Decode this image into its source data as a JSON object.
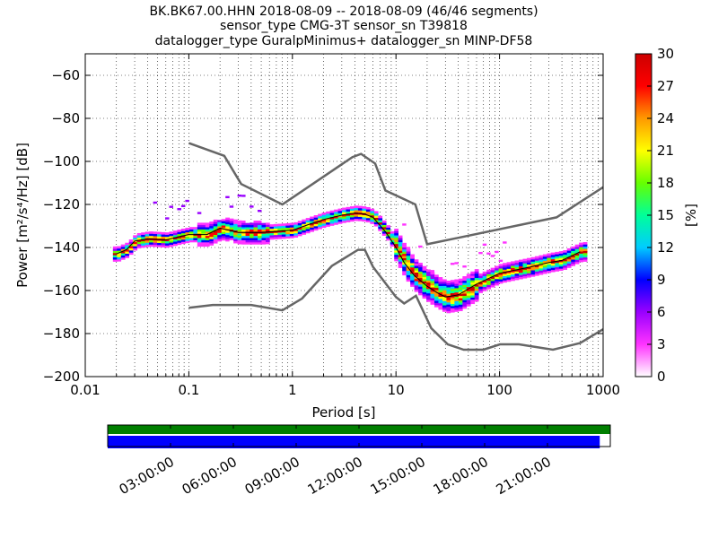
{
  "chart_data": {
    "type": "heatmap",
    "title_lines": [
      "BK.BK67.00.HHN   2018-08-09 -- 2018-08-09  (46/46 segments)",
      "sensor_type CMG-3T sensor_sn T39818",
      "datalogger_type GuralpMinimus+ datalogger_sn MINP-DF58"
    ],
    "xlabel": "Period [s]",
    "ylabel": "Power [m²/s⁴/Hz] [dB]",
    "xscale": "log",
    "xlim": [
      0.01,
      1000
    ],
    "ylim": [
      -200,
      -50
    ],
    "x_ticks": [
      {
        "value": 0.01,
        "label": "0.01"
      },
      {
        "value": 0.1,
        "label": "0.1"
      },
      {
        "value": 1,
        "label": "1"
      },
      {
        "value": 10,
        "label": "10"
      },
      {
        "value": 100,
        "label": "100"
      },
      {
        "value": 1000,
        "label": "1000"
      }
    ],
    "y_ticks": [
      {
        "value": -60,
        "label": "−60"
      },
      {
        "value": -80,
        "label": "−80"
      },
      {
        "value": -100,
        "label": "−100"
      },
      {
        "value": -120,
        "label": "−120"
      },
      {
        "value": -140,
        "label": "−140"
      },
      {
        "value": -160,
        "label": "−160"
      },
      {
        "value": -180,
        "label": "−180"
      },
      {
        "value": -200,
        "label": "−200"
      }
    ],
    "grid": "dotted-vertical-log",
    "colorbar": {
      "label": "[%]",
      "range": [
        0,
        30
      ],
      "ticks": [
        {
          "value": 0,
          "label": "0"
        },
        {
          "value": 3,
          "label": "3"
        },
        {
          "value": 6,
          "label": "6"
        },
        {
          "value": 9,
          "label": "9"
        },
        {
          "value": 12,
          "label": "12"
        },
        {
          "value": 15,
          "label": "15"
        },
        {
          "value": 18,
          "label": "18"
        },
        {
          "value": 21,
          "label": "21"
        },
        {
          "value": 24,
          "label": "24"
        },
        {
          "value": 27,
          "label": "27"
        },
        {
          "value": 30,
          "label": "30"
        }
      ],
      "colors": [
        "#ffffff",
        "#ff33ff",
        "#9900ff",
        "#0000ff",
        "#00ccff",
        "#00ff99",
        "#66ff00",
        "#ffff00",
        "#ff9900",
        "#ff0000",
        "#cc0000"
      ]
    },
    "noise_models": [
      {
        "name": "NHNM",
        "points": [
          [
            0.1,
            -91.5
          ],
          [
            0.22,
            -97.4
          ],
          [
            0.32,
            -110.5
          ],
          [
            0.8,
            -120
          ],
          [
            3.8,
            -98
          ],
          [
            4.6,
            -96.5
          ],
          [
            6.3,
            -101
          ],
          [
            7.9,
            -113.5
          ],
          [
            15.4,
            -120
          ],
          [
            20,
            -138.5
          ],
          [
            354.8,
            -126
          ],
          [
            1000,
            -112
          ]
        ]
      },
      {
        "name": "NLNM",
        "points": [
          [
            0.1,
            -168
          ],
          [
            0.17,
            -166.7
          ],
          [
            0.4,
            -166.7
          ],
          [
            0.8,
            -169.2
          ],
          [
            1.24,
            -163.7
          ],
          [
            2.4,
            -148.6
          ],
          [
            4.3,
            -141.1
          ],
          [
            5.0,
            -141.1
          ],
          [
            6.0,
            -149
          ],
          [
            10,
            -163
          ],
          [
            12,
            -166
          ],
          [
            15.6,
            -162.4
          ],
          [
            21.9,
            -177.5
          ],
          [
            31.6,
            -185
          ],
          [
            45,
            -187.5
          ],
          [
            70,
            -187.5
          ],
          [
            101,
            -185
          ],
          [
            154,
            -185
          ],
          [
            328,
            -187.5
          ],
          [
            600,
            -184.4
          ],
          [
            1000,
            -178
          ]
        ]
      }
    ],
    "mode_curve": [
      [
        0.02,
        -143
      ],
      [
        0.025,
        -141
      ],
      [
        0.03,
        -137
      ],
      [
        0.04,
        -136
      ],
      [
        0.06,
        -136.5
      ],
      [
        0.08,
        -135
      ],
      [
        0.1,
        -134
      ],
      [
        0.15,
        -134
      ],
      [
        0.2,
        -131
      ],
      [
        0.3,
        -133
      ],
      [
        0.5,
        -133
      ],
      [
        1,
        -132
      ],
      [
        1.5,
        -129
      ],
      [
        2,
        -127
      ],
      [
        3,
        -125
      ],
      [
        4,
        -124
      ],
      [
        5,
        -124.5
      ],
      [
        6,
        -126
      ],
      [
        8,
        -133
      ],
      [
        10,
        -140
      ],
      [
        12,
        -147
      ],
      [
        15,
        -153
      ],
      [
        20,
        -158
      ],
      [
        25,
        -161
      ],
      [
        30,
        -163
      ],
      [
        40,
        -162
      ],
      [
        60,
        -157
      ],
      [
        100,
        -152
      ],
      [
        200,
        -149
      ],
      [
        300,
        -147
      ],
      [
        400,
        -146
      ],
      [
        600,
        -142
      ]
    ],
    "timeline": {
      "ticks": [
        "03:00:00",
        "06:00:00",
        "09:00:00",
        "12:00:00",
        "15:00:00",
        "18:00:00",
        "21:00:00"
      ],
      "rows": [
        {
          "color": "#007f00",
          "coverage": [
            0,
            1
          ]
        },
        {
          "color": "#0000ff",
          "coverage": [
            0,
            0.979
          ]
        }
      ]
    }
  }
}
